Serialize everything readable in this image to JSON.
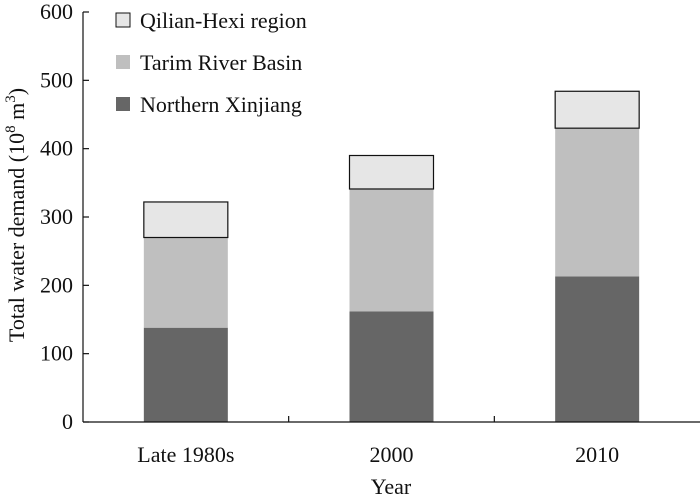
{
  "chart_data": {
    "type": "bar",
    "stacked": true,
    "categories": [
      "Late 1980s",
      "2000",
      "2010"
    ],
    "series": [
      {
        "name": "Northern Xinjiang",
        "values": [
          138,
          162,
          213
        ],
        "color": "#666666"
      },
      {
        "name": "Tarim River Basin",
        "values": [
          132,
          179,
          217
        ],
        "color": "#bfbfbf"
      },
      {
        "name": "Qilian-Hexi region",
        "values": [
          52,
          49,
          54
        ],
        "color": "#e6e6e6"
      }
    ],
    "totals": [
      322,
      390,
      484
    ],
    "xlabel": "Year",
    "ylabel_main": "Total water demand (10",
    "ylabel_sup": "8",
    "ylabel_unit": " m",
    "ylabel_sup2": "3",
    "ylabel_close": ")",
    "ylim": [
      0,
      600
    ],
    "yticks": [
      "0",
      "100",
      "200",
      "300",
      "400",
      "500",
      "600"
    ],
    "ytick_values": [
      0,
      100,
      200,
      300,
      400,
      500,
      600
    ],
    "legend_position": "top-left",
    "legend_order": [
      "Qilian-Hexi region",
      "Tarim River Basin",
      "Northern Xinjiang"
    ],
    "grid": false
  }
}
